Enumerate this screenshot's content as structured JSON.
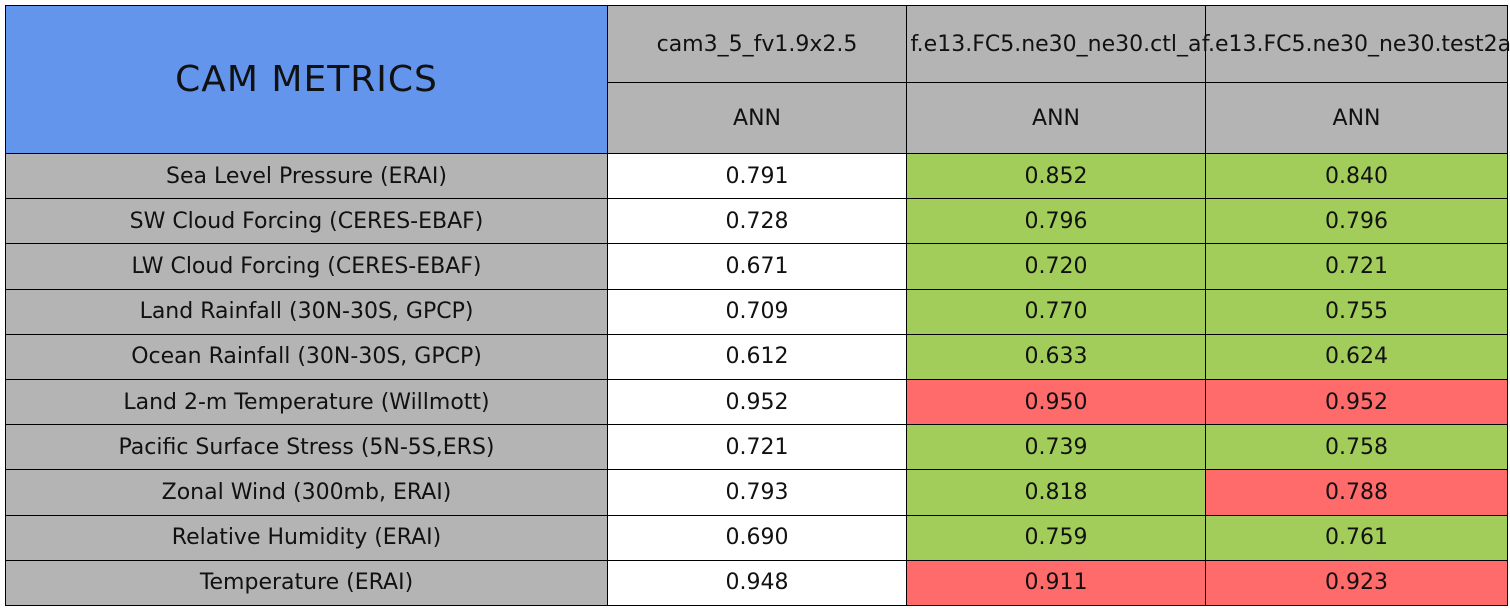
{
  "header": {
    "title": "CAM METRICS",
    "cases": [
      "cam3_5_fv1.9x2.5",
      "f.e13.FC5.ne30_ne30.ctl_a",
      "f.e13.FC5.ne30_ne30.test2a"
    ],
    "seasons": [
      "ANN",
      "ANN",
      "ANN"
    ]
  },
  "colors": {
    "title": "#6495ed",
    "header": "#b4b4b4",
    "label": "#b4b4b4",
    "white": "#ffffff",
    "green": "#a2cd5a",
    "red": "#ff6a6a"
  },
  "table": {
    "rows": [
      {
        "label": "Sea Level Pressure (ERAI)",
        "values": [
          "0.791",
          "0.852",
          "0.840"
        ],
        "colors": [
          "white",
          "green",
          "green"
        ]
      },
      {
        "label": "SW Cloud Forcing (CERES-EBAF)",
        "values": [
          "0.728",
          "0.796",
          "0.796"
        ],
        "colors": [
          "white",
          "green",
          "green"
        ]
      },
      {
        "label": "LW Cloud Forcing (CERES-EBAF)",
        "values": [
          "0.671",
          "0.720",
          "0.721"
        ],
        "colors": [
          "white",
          "green",
          "green"
        ]
      },
      {
        "label": "Land Rainfall (30N-30S, GPCP)",
        "values": [
          "0.709",
          "0.770",
          "0.755"
        ],
        "colors": [
          "white",
          "green",
          "green"
        ]
      },
      {
        "label": "Ocean Rainfall (30N-30S, GPCP)",
        "values": [
          "0.612",
          "0.633",
          "0.624"
        ],
        "colors": [
          "white",
          "green",
          "green"
        ]
      },
      {
        "label": "Land 2-m Temperature (Willmott)",
        "values": [
          "0.952",
          "0.950",
          "0.952"
        ],
        "colors": [
          "white",
          "red",
          "red"
        ]
      },
      {
        "label": "Pacific Surface Stress (5N-5S,ERS)",
        "values": [
          "0.721",
          "0.739",
          "0.758"
        ],
        "colors": [
          "white",
          "green",
          "green"
        ]
      },
      {
        "label": "Zonal Wind (300mb, ERAI)",
        "values": [
          "0.793",
          "0.818",
          "0.788"
        ],
        "colors": [
          "white",
          "green",
          "red"
        ]
      },
      {
        "label": "Relative Humidity (ERAI)",
        "values": [
          "0.690",
          "0.759",
          "0.761"
        ],
        "colors": [
          "white",
          "green",
          "green"
        ]
      },
      {
        "label": "Temperature (ERAI)",
        "values": [
          "0.948",
          "0.911",
          "0.923"
        ],
        "colors": [
          "white",
          "red",
          "red"
        ]
      }
    ]
  }
}
